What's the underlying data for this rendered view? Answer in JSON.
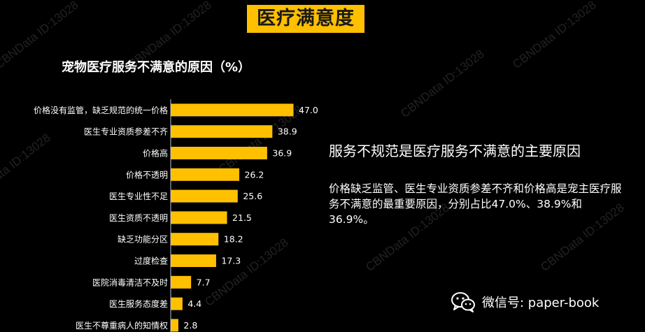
{
  "header": {
    "title": "医疗满意度"
  },
  "chart_data": {
    "type": "bar",
    "orientation": "horizontal",
    "title": "宠物医疗服务不满意的原因（%）",
    "categories": [
      "价格没有监管，缺乏规范的统一价格",
      "医生专业资质参差不齐",
      "价格高",
      "价格不透明",
      "医生专业性不足",
      "医生资质不透明",
      "缺乏功能分区",
      "过度检查",
      "医院消毒清洁不及时",
      "医生服务态度差",
      "医生不尊重病人的知情权"
    ],
    "values": [
      47.0,
      38.9,
      36.9,
      26.2,
      25.6,
      21.5,
      18.2,
      17.3,
      7.7,
      4.4,
      2.8
    ],
    "value_labels": [
      "47.0",
      "38.9",
      "36.9",
      "26.2",
      "25.6",
      "21.5",
      "18.2",
      "17.3",
      "7.7",
      "4.4",
      "2.8"
    ],
    "bar_color": "#ffc000",
    "grid": false
  },
  "summary": {
    "headline": "服务不规范是医疗服务不满意的主要原因",
    "description": "价格缺乏监管、医生专业资质参差不齐和价格高是宠主医疗服务不满意的最重要原因，分别占比47.0%、38.9%和36.9%。"
  },
  "footer": {
    "wechat_label": "微信号: paper-book",
    "wechat_icon": "wechat-icon"
  },
  "watermark": "CBNData ID:13028",
  "colors": {
    "background": "#000000",
    "accent": "#ffc000",
    "text": "#ffffff"
  }
}
